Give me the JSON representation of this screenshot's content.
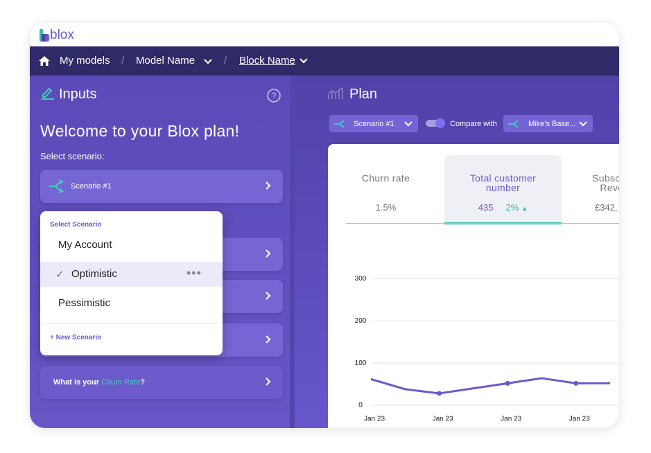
{
  "header": {
    "logo": "blox"
  },
  "breadcrumb": {
    "items": [
      "My models",
      "Model Name",
      "Block Name"
    ],
    "separator": "/"
  },
  "inputs": {
    "title": "Inputs",
    "welcome": "Welcome to your Blox plan!",
    "select_label": "Select scenario:",
    "scenario_button": "Scenario #1",
    "question": {
      "prefix": "What is your ",
      "highlight": "Churn Rate",
      "suffix": "?"
    }
  },
  "dropdown": {
    "header": "Select Scenario",
    "options": [
      "My Account",
      "Optimistic",
      "Pessimistic"
    ],
    "selected": 1,
    "new_option": "+ New Scenario"
  },
  "plan": {
    "title": "Plan",
    "scenario": "Scenario #1",
    "compare_label": "Compare with",
    "compare_scenario": "Mike’s Base...",
    "tabs": [
      {
        "title": "Churn rate",
        "value": "1.5%"
      },
      {
        "title": "Total customer number",
        "value": "435",
        "change": "2%"
      },
      {
        "title": "Subscription Revenue",
        "value": "£342,"
      }
    ],
    "selected_tab": 1
  },
  "chart_data": {
    "type": "line",
    "categories": [
      "Jan 23",
      null,
      "Jan 23",
      null,
      "Jan 23",
      null,
      "Jan 23",
      null
    ],
    "values": [
      62,
      38,
      28,
      40,
      52,
      64,
      52,
      52
    ],
    "color": "#6a5acd",
    "ylim": [
      0,
      350
    ],
    "yticks": [
      0,
      100,
      200,
      300
    ],
    "grid": true
  }
}
